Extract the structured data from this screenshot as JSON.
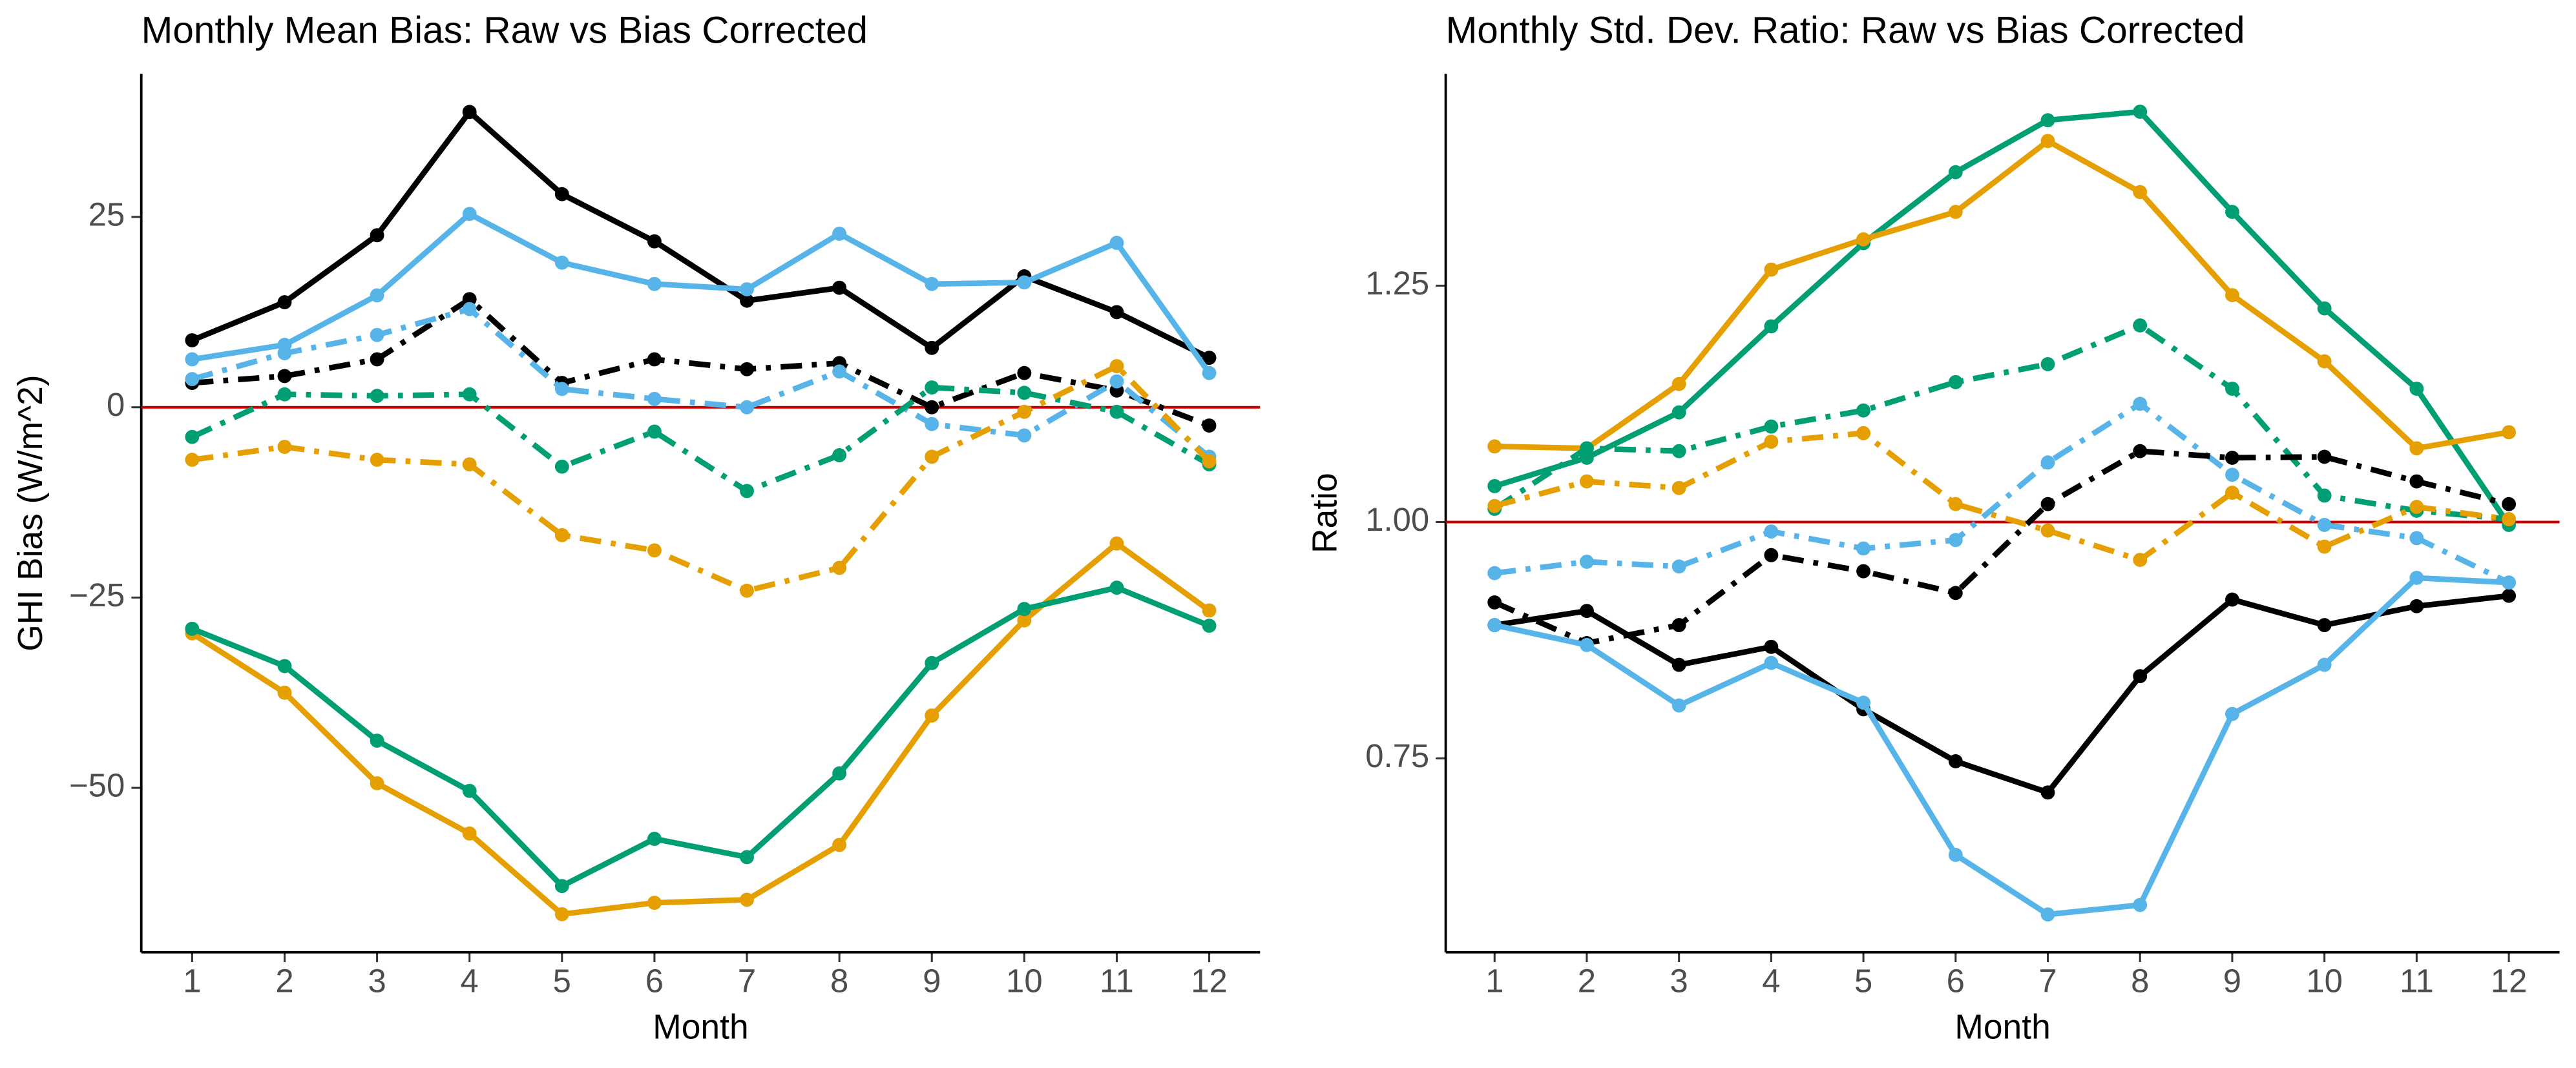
{
  "chart_data": [
    {
      "type": "line",
      "title": "Monthly Mean Bias: Raw vs Bias Corrected",
      "x_label": "Month",
      "y_label": "GHI Bias (W/m^2)",
      "x": [
        1,
        2,
        3,
        4,
        5,
        6,
        7,
        8,
        9,
        10,
        11,
        12
      ],
      "xlim": [
        0.45,
        12.55
      ],
      "xticks": [
        1,
        2,
        3,
        4,
        5,
        6,
        7,
        8,
        9,
        10,
        11,
        12
      ],
      "ylim": [
        -71.6,
        43.8
      ],
      "yticks": [
        {
          "value": -50,
          "label": "−50"
        },
        {
          "value": -25,
          "label": "−25"
        },
        0,
        25
      ],
      "reference_line": 0,
      "reference_color": "#cc0000",
      "series": [
        {
          "color": "#000000",
          "dash": "solid",
          "values": [
            8.8,
            13.8,
            22.6,
            38.8,
            28,
            21.8,
            14,
            15.7,
            7.8,
            17.2,
            12.5,
            6.5
          ]
        },
        {
          "color": "#56b4e9",
          "dash": "solid",
          "values": [
            6.3,
            8.2,
            14.7,
            25.4,
            19,
            16.2,
            15.5,
            22.8,
            16.2,
            16.4,
            21.6,
            4.5
          ]
        },
        {
          "color": "#000000",
          "dash": "dashdot",
          "values": [
            3.2,
            4.1,
            6.3,
            14.2,
            3.2,
            6.3,
            5,
            5.8,
            0,
            4.5,
            2.2,
            -2.4
          ]
        },
        {
          "color": "#56b4e9",
          "dash": "dashdot",
          "values": [
            3.7,
            7.1,
            9.5,
            12.9,
            2.4,
            1.1,
            0,
            4.7,
            -2.2,
            -3.7,
            3.4,
            -6.5
          ]
        },
        {
          "color": "#009e73",
          "dash": "dashdot",
          "values": [
            -3.9,
            1.7,
            1.5,
            1.7,
            -7.8,
            -3.2,
            -11,
            -6.3,
            2.6,
            1.9,
            -0.6,
            -7.5
          ]
        },
        {
          "color": "#e69f00",
          "dash": "dashdot",
          "values": [
            -6.9,
            -5.2,
            -6.9,
            -7.5,
            -16.8,
            -18.8,
            -24.1,
            -21.1,
            -6.5,
            -0.6,
            5.4,
            -7.1
          ]
        },
        {
          "color": "#e69f00",
          "dash": "solid",
          "values": [
            -29.7,
            -37.5,
            -49.4,
            -56,
            -66.6,
            -65.1,
            -64.7,
            -57.5,
            -40.5,
            -28,
            -17.9,
            -26.7
          ]
        },
        {
          "color": "#009e73",
          "dash": "solid",
          "values": [
            -29.1,
            -34,
            -43.8,
            -50.4,
            -62.9,
            -56.7,
            -59.1,
            -48.1,
            -33.6,
            -26.5,
            -23.7,
            -28.7
          ]
        }
      ]
    },
    {
      "type": "line",
      "title": "Monthly Std. Dev. Ratio: Raw vs Bias Corrected",
      "x_label": "Month",
      "y_label": "Ratio",
      "x": [
        1,
        2,
        3,
        4,
        5,
        6,
        7,
        8,
        9,
        10,
        11,
        12
      ],
      "xlim": [
        0.47,
        12.55
      ],
      "xticks": [
        1,
        2,
        3,
        4,
        5,
        6,
        7,
        8,
        9,
        10,
        11,
        12
      ],
      "ylim": [
        0.545,
        1.474
      ],
      "yticks": [
        0.75,
        {
          "value": 1,
          "label": "1.00"
        },
        1.25
      ],
      "reference_line": 1,
      "reference_color": "#cc0000",
      "series": [
        {
          "color": "#009e73",
          "dash": "solid",
          "values": [
            1.038,
            1.068,
            1.116,
            1.207,
            1.295,
            1.37,
            1.425,
            1.434,
            1.328,
            1.226,
            1.141,
            0.997
          ]
        },
        {
          "color": "#e69f00",
          "dash": "solid",
          "values": [
            1.08,
            1.078,
            1.146,
            1.267,
            1.299,
            1.328,
            1.403,
            1.349,
            1.24,
            1.17,
            1.078,
            1.095
          ]
        },
        {
          "color": "#009e73",
          "dash": "dashdot",
          "values": [
            1.014,
            1.078,
            1.075,
            1.101,
            1.118,
            1.148,
            1.167,
            1.208,
            1.141,
            1.028,
            1.012,
            1.003
          ]
        },
        {
          "color": "#e69f00",
          "dash": "dashdot",
          "values": [
            1.017,
            1.043,
            1.036,
            1.085,
            1.094,
            1.019,
            0.991,
            0.96,
            1.031,
            0.974,
            1.016,
            1.003
          ]
        },
        {
          "color": "#56b4e9",
          "dash": "dashdot",
          "values": [
            0.946,
            0.958,
            0.953,
            0.99,
            0.972,
            0.981,
            1.063,
            1.125,
            1.05,
            0.997,
            0.983,
            0.936
          ]
        },
        {
          "color": "#000000",
          "dash": "dashdot",
          "values": [
            0.915,
            0.872,
            0.891,
            0.965,
            0.948,
            0.925,
            1.019,
            1.075,
            1.068,
            1.069,
            1.043,
            1.019
          ]
        },
        {
          "color": "#000000",
          "dash": "solid",
          "values": [
            0.891,
            0.906,
            0.849,
            0.868,
            0.802,
            0.747,
            0.714,
            0.837,
            0.918,
            0.891,
            0.911,
            0.922
          ]
        },
        {
          "color": "#56b4e9",
          "dash": "solid",
          "values": [
            0.891,
            0.87,
            0.806,
            0.851,
            0.809,
            0.648,
            0.585,
            0.595,
            0.797,
            0.849,
            0.941,
            0.936
          ]
        }
      ]
    }
  ]
}
